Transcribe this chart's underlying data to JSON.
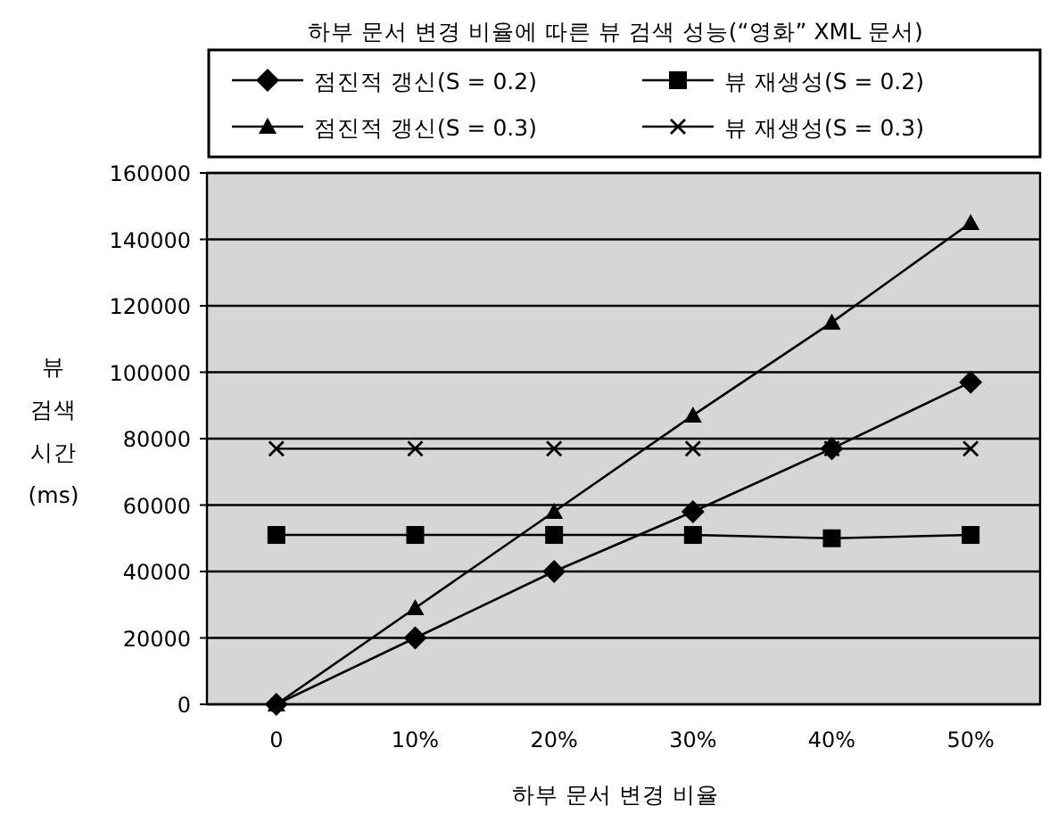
{
  "chart_data": {
    "type": "line",
    "title": "하부 문서 변경 비율에 따른 뷰 검색 성능(“영화” XML 문서)",
    "xlabel": "하부 문서 변경 비율",
    "ylabel": "뷰 검색 시간 (ms)",
    "categories": [
      "0",
      "10%",
      "20%",
      "30%",
      "40%",
      "50%"
    ],
    "series": [
      {
        "name": "점진적 갱신(S = 0.2)",
        "color": "#000000",
        "marker": "diamond",
        "values": [
          0,
          20000,
          40000,
          58000,
          77000,
          97000
        ]
      },
      {
        "name": "뷰 재생성(S = 0.2)",
        "color": "#000000",
        "marker": "square",
        "values": [
          51000,
          51000,
          51000,
          51000,
          50000,
          51000
        ]
      },
      {
        "name": "점진적 갱신(S = 0.3)",
        "color": "#000000",
        "marker": "triangle",
        "values": [
          0,
          29000,
          58000,
          87000,
          115000,
          145000
        ]
      },
      {
        "name": "뷰 재생성(S = 0.3)",
        "color": "#000000",
        "marker": "cross",
        "values": [
          77000,
          77000,
          77000,
          77000,
          77000,
          77000
        ]
      }
    ],
    "ylim": [
      0,
      160000
    ],
    "yticks": [
      0,
      20000,
      40000,
      60000,
      80000,
      100000,
      120000,
      140000,
      160000
    ],
    "grid": "y",
    "legend": "top",
    "line_style": "solid"
  }
}
